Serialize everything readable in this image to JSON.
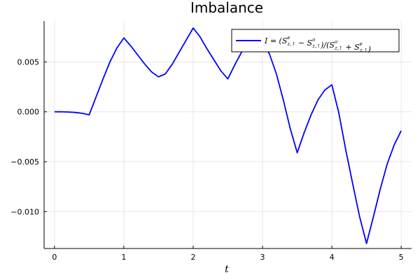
{
  "chart_data": {
    "type": "line",
    "title": "Imbalance",
    "xlabel": "t",
    "ylabel": "",
    "xlim": [
      -0.15,
      5.15
    ],
    "ylim": [
      -0.0137,
      0.0091
    ],
    "xticks": [
      0,
      1,
      2,
      3,
      4,
      5
    ],
    "xtick_labels": [
      "0",
      "1",
      "2",
      "3",
      "4",
      "5"
    ],
    "yticks": [
      0.005,
      0.0,
      -0.005,
      -0.01
    ],
    "ytick_labels": [
      "0.005",
      "0.000",
      "−0.005",
      "−0.010"
    ],
    "grid": true,
    "legend_position": "top-right",
    "series": [
      {
        "name": "I = (S^e_{z,↑} − S^o_{z,↑})/(S^o_{z,↑} + S^e_{z,↑})",
        "color": "#0000ff",
        "x": [
          0,
          0.1,
          0.2,
          0.3,
          0.4,
          0.5,
          0.6,
          0.7,
          0.8,
          0.9,
          1.0,
          1.1,
          1.2,
          1.3,
          1.4,
          1.5,
          1.6,
          1.7,
          1.8,
          1.9,
          2.0,
          2.1,
          2.2,
          2.3,
          2.4,
          2.5,
          2.6,
          2.7,
          2.8,
          2.9,
          3.0,
          3.1,
          3.2,
          3.3,
          3.4,
          3.5,
          3.6,
          3.7,
          3.8,
          3.9,
          4.0,
          4.1,
          4.2,
          4.3,
          4.4,
          4.5,
          4.6,
          4.7,
          4.8,
          4.9,
          5.0
        ],
        "y": [
          0.0,
          0.0,
          -2e-05,
          -7e-05,
          -0.00015,
          -0.0003,
          0.0015,
          0.0033,
          0.005,
          0.0064,
          0.0074,
          0.0066,
          0.0057,
          0.0048,
          0.004,
          0.0035,
          0.0038,
          0.0048,
          0.006,
          0.0072,
          0.0084,
          0.0075,
          0.0063,
          0.0052,
          0.0041,
          0.0033,
          0.0047,
          0.006,
          0.0066,
          0.0068,
          0.0069,
          0.0058,
          0.0038,
          0.0012,
          -0.0017,
          -0.0041,
          -0.0021,
          -0.0003,
          0.0012,
          0.0022,
          0.0027,
          -0.0001,
          -0.0038,
          -0.0072,
          -0.0105,
          -0.0132,
          -0.0105,
          -0.0077,
          -0.0052,
          -0.0033,
          -0.0019
        ]
      }
    ]
  },
  "legend": {
    "label_main": "I = (S",
    "label_parts": [
      {
        "sup": "e",
        "sub": "z,↑"
      },
      {
        "sep": " − S"
      },
      {
        "sup": "o",
        "sub": "z,↑"
      },
      {
        "sep": ")/(S"
      },
      {
        "sup": "o",
        "sub": "z,↑"
      },
      {
        "sep": " + S"
      },
      {
        "sup": "e",
        "sub": "z,↑"
      },
      {
        "sep": ")"
      }
    ]
  }
}
